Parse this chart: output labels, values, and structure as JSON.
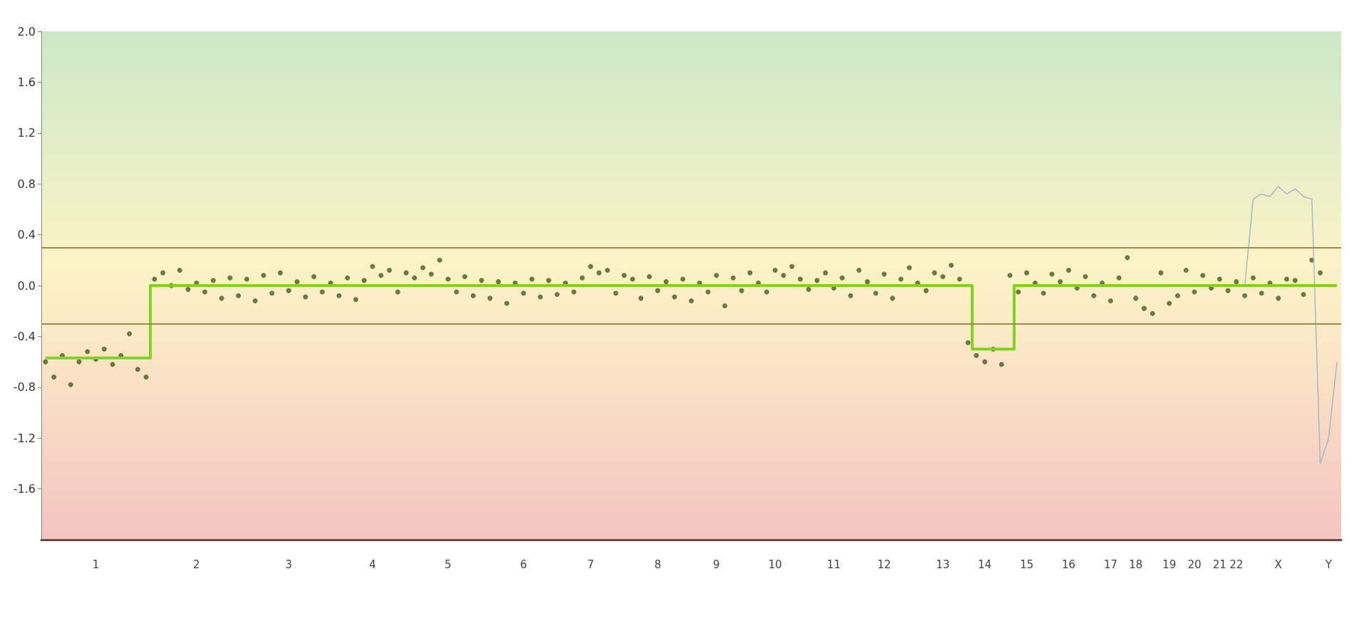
{
  "chart_data": {
    "type": "scatter",
    "grid": false,
    "ylim": [
      -2,
      2
    ],
    "categories": [
      null,
      null,
      null,
      null,
      null,
      null,
      "1",
      null,
      null,
      null,
      null,
      null,
      null,
      null,
      null,
      null,
      null,
      null,
      "2",
      null,
      null,
      null,
      null,
      null,
      null,
      null,
      null,
      null,
      null,
      "3",
      null,
      null,
      null,
      null,
      null,
      null,
      null,
      null,
      null,
      "4",
      null,
      null,
      null,
      null,
      null,
      null,
      null,
      null,
      "5",
      null,
      null,
      null,
      null,
      null,
      null,
      null,
      null,
      "6",
      null,
      null,
      null,
      null,
      null,
      null,
      null,
      "7",
      null,
      null,
      null,
      null,
      null,
      null,
      null,
      "8",
      null,
      null,
      null,
      null,
      null,
      null,
      "9",
      null,
      null,
      null,
      null,
      null,
      null,
      "10",
      null,
      null,
      null,
      null,
      null,
      null,
      "11",
      null,
      null,
      null,
      null,
      null,
      "12",
      null,
      null,
      null,
      null,
      null,
      null,
      "13",
      null,
      null,
      null,
      null,
      "14",
      null,
      null,
      null,
      null,
      "15",
      null,
      null,
      null,
      null,
      "16",
      null,
      null,
      null,
      null,
      "17",
      null,
      null,
      "18",
      null,
      null,
      null,
      "19",
      null,
      null,
      "20",
      null,
      null,
      "21",
      null,
      "22",
      null,
      null,
      null,
      null,
      "X",
      null,
      null,
      null,
      null,
      null,
      "Y",
      null
    ],
    "yticks": [
      {
        "value": 2,
        "label": "2.0"
      },
      {
        "value": 1.6,
        "label": "1.6"
      },
      {
        "value": 1.2,
        "label": "1.2"
      },
      {
        "value": 0.8,
        "label": "0.8"
      },
      {
        "value": 0.4,
        "label": "0.4"
      },
      {
        "value": 0,
        "label": "0.0"
      },
      {
        "value": -0.4,
        "label": "-0.4"
      },
      {
        "value": -0.8,
        "label": "-0.8"
      },
      {
        "value": -1.2,
        "label": "-1.2"
      },
      {
        "value": -1.6,
        "label": "-1.6"
      }
    ],
    "ref_lines": [
      {
        "axis": "y",
        "value": 0.3,
        "color": "#9a8a50"
      },
      {
        "axis": "y",
        "value": -0.3,
        "color": "#9a8a50"
      }
    ],
    "series": [
      {
        "type": "line",
        "marker": "none",
        "color": "#a8b8cc",
        "values": [
          null,
          null,
          null,
          null,
          null,
          null,
          null,
          null,
          null,
          null,
          null,
          null,
          null,
          null,
          null,
          null,
          null,
          null,
          null,
          null,
          null,
          null,
          null,
          null,
          null,
          null,
          null,
          null,
          null,
          null,
          null,
          null,
          null,
          null,
          null,
          null,
          null,
          null,
          null,
          null,
          null,
          null,
          null,
          null,
          null,
          null,
          null,
          null,
          null,
          null,
          null,
          null,
          null,
          null,
          null,
          null,
          null,
          null,
          null,
          null,
          null,
          null,
          null,
          null,
          null,
          null,
          null,
          null,
          null,
          null,
          null,
          null,
          null,
          null,
          null,
          null,
          null,
          null,
          null,
          null,
          null,
          null,
          null,
          null,
          null,
          null,
          null,
          null,
          null,
          null,
          null,
          null,
          null,
          null,
          null,
          null,
          null,
          null,
          null,
          null,
          null,
          null,
          null,
          null,
          null,
          null,
          null,
          null,
          null,
          null,
          null,
          null,
          null,
          null,
          null,
          null,
          null,
          null,
          null,
          null,
          null,
          null,
          null,
          null,
          null,
          null,
          null,
          null,
          null,
          null,
          null,
          null,
          null,
          null,
          null,
          null,
          null,
          null,
          null,
          null,
          null,
          null,
          null,
          0.0,
          0.68,
          0.72,
          0.7,
          0.78,
          0.72,
          0.76,
          0.7,
          0.68,
          -1.4,
          -1.2,
          -0.6
        ]
      },
      {
        "marker": "circle",
        "color": "#4a5a1e",
        "values": [
          -0.6,
          -0.72,
          -0.55,
          -0.78,
          -0.6,
          -0.52,
          -0.58,
          -0.5,
          -0.62,
          -0.55,
          -0.38,
          -0.66,
          -0.72,
          0.05,
          0.1,
          0.0,
          0.12,
          -0.03,
          0.02,
          -0.05,
          0.04,
          -0.1,
          0.06,
          -0.08,
          0.05,
          -0.12,
          0.08,
          -0.06,
          0.1,
          -0.04,
          0.03,
          -0.09,
          0.07,
          -0.05,
          0.02,
          -0.08,
          0.06,
          -0.11,
          0.04,
          0.15,
          0.08,
          0.12,
          -0.05,
          0.1,
          0.06,
          0.14,
          0.09,
          0.2,
          0.05,
          -0.05,
          0.07,
          -0.08,
          0.04,
          -0.1,
          0.03,
          -0.14,
          0.02,
          -0.06,
          0.05,
          -0.09,
          0.04,
          -0.07,
          0.02,
          -0.05,
          0.06,
          0.15,
          0.1,
          0.12,
          -0.06,
          0.08,
          0.05,
          -0.1,
          0.07,
          -0.04,
          0.03,
          -0.09,
          0.05,
          -0.12,
          0.02,
          -0.05,
          0.08,
          -0.16,
          0.06,
          -0.04,
          0.1,
          0.02,
          -0.05,
          0.12,
          0.08,
          0.15,
          0.05,
          -0.03,
          0.04,
          0.1,
          -0.02,
          0.06,
          -0.08,
          0.12,
          0.03,
          -0.06,
          0.09,
          -0.1,
          0.05,
          0.14,
          0.02,
          -0.04,
          0.1,
          0.07,
          0.16,
          0.05,
          -0.45,
          -0.55,
          -0.6,
          -0.5,
          -0.62,
          0.08,
          -0.05,
          0.1,
          0.02,
          -0.06,
          0.09,
          0.03,
          0.12,
          -0.02,
          0.07,
          -0.08,
          0.02,
          -0.12,
          0.06,
          0.22,
          -0.1,
          -0.18,
          -0.22,
          0.1,
          -0.14,
          -0.08,
          0.12,
          -0.05,
          0.08,
          -0.02,
          0.05,
          -0.04,
          0.03,
          -0.08,
          0.06,
          -0.06,
          0.02,
          -0.1,
          0.05,
          0.04,
          -0.07,
          0.2,
          0.1,
          null,
          null
        ]
      },
      {
        "type": "step",
        "marker": "none",
        "color": "#7ed321",
        "values": [
          -0.57,
          -0.57,
          -0.57,
          -0.57,
          -0.57,
          -0.57,
          -0.57,
          -0.57,
          -0.57,
          -0.57,
          -0.57,
          -0.57,
          -0.57,
          0,
          0,
          0,
          0,
          0,
          0,
          0,
          0,
          0,
          0,
          0,
          0,
          0,
          0,
          0,
          0,
          0,
          0,
          0,
          0,
          0,
          0,
          0,
          0,
          0,
          0,
          0,
          0,
          0,
          0,
          0,
          0,
          0,
          0,
          0,
          0,
          0,
          0,
          0,
          0,
          0,
          0,
          0,
          0,
          0,
          0,
          0,
          0,
          0,
          0,
          0,
          0,
          0,
          0,
          0,
          0,
          0,
          0,
          0,
          0,
          0,
          0,
          0,
          0,
          0,
          0,
          0,
          0,
          0,
          0,
          0,
          0,
          0,
          0,
          0,
          0,
          0,
          0,
          0,
          0,
          0,
          0,
          0,
          0,
          0,
          0,
          0,
          0,
          0,
          0,
          0,
          0,
          0,
          0,
          0,
          0,
          0,
          0,
          -0.5,
          -0.5,
          -0.5,
          -0.5,
          -0.5,
          0,
          0,
          0,
          0,
          0,
          0,
          0,
          0,
          0,
          0,
          0,
          0,
          0,
          0,
          0,
          0,
          0,
          0,
          0,
          0,
          0,
          0,
          0,
          0,
          0,
          0,
          0,
          0,
          0,
          0,
          0,
          0,
          0,
          0,
          0,
          0,
          0,
          0,
          0
        ]
      }
    ]
  }
}
